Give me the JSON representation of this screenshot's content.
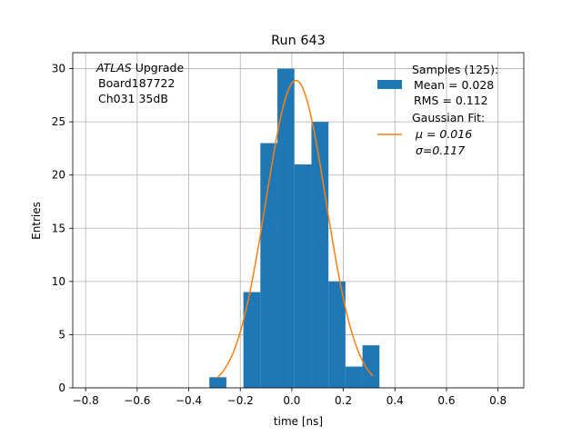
{
  "chart_data": {
    "type": "bar",
    "title": "Run 643",
    "xlabel": "time [ns]",
    "ylabel": "Entries",
    "xlim": [
      -0.85,
      0.9
    ],
    "ylim": [
      0,
      31.5
    ],
    "xticks": [
      -0.8,
      -0.6,
      -0.4,
      -0.2,
      0.0,
      0.2,
      0.4,
      0.6,
      0.8
    ],
    "xtick_labels": [
      "−0.8",
      "−0.6",
      "−0.4",
      "−0.2",
      "0.0",
      "0.2",
      "0.4",
      "0.6",
      "0.8"
    ],
    "yticks": [
      0,
      5,
      10,
      15,
      20,
      25,
      30
    ],
    "grid": true,
    "annotation": {
      "experiment": "ATLAS",
      "experiment_suffix": " Upgrade",
      "board": "Board187722",
      "channel": "Ch031 35dB"
    },
    "histogram": {
      "bin_edges": [
        -0.32,
        -0.254,
        -0.188,
        -0.122,
        -0.056,
        0.01,
        0.076,
        0.142,
        0.208,
        0.274,
        0.34
      ],
      "counts": [
        1,
        0,
        9,
        23,
        30,
        21,
        25,
        10,
        2,
        4
      ],
      "color": "#1f77b4",
      "legend_title": "Samples (125):",
      "legend_mean": " Mean = 0.028",
      "legend_rms": " RMS = 0.112"
    },
    "fit": {
      "color": "#ff7f0e",
      "amplitude": 28.9,
      "mu": 0.016,
      "sigma": 0.117,
      "x_range": [
        -0.29,
        0.315
      ],
      "legend_title": "Gaussian Fit:",
      "legend_mu": "μ = 0.016",
      "legend_sigma": "σ=0.117"
    },
    "legend_position": "top-right"
  }
}
